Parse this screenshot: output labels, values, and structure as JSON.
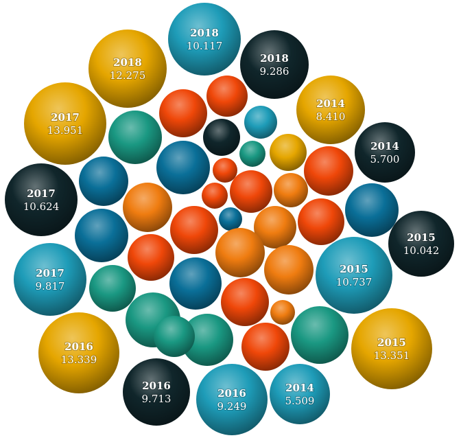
{
  "chart_data": {
    "type": "bubble",
    "colors": {
      "yellow": "#e5a600",
      "teal": "#1e9cb8",
      "dark": "#10262b",
      "green": "#1a9882",
      "blue": "#0a6f98",
      "orange_red": "#ef4709",
      "orange": "#ef7c10"
    },
    "labeled_bubbles": [
      {
        "year": "2018",
        "value": "10.117",
        "color": "teal"
      },
      {
        "year": "2018",
        "value": "9.286",
        "color": "dark"
      },
      {
        "year": "2018",
        "value": "12.275",
        "color": "yellow"
      },
      {
        "year": "2014",
        "value": "8.410",
        "color": "yellow"
      },
      {
        "year": "2017",
        "value": "13.951",
        "color": "yellow"
      },
      {
        "year": "2014",
        "value": "5.700",
        "color": "dark"
      },
      {
        "year": "2017",
        "value": "10.624",
        "color": "dark"
      },
      {
        "year": "2015",
        "value": "10.042",
        "color": "dark"
      },
      {
        "year": "2017",
        "value": "9.817",
        "color": "teal"
      },
      {
        "year": "2015",
        "value": "10.737",
        "color": "teal"
      },
      {
        "year": "2016",
        "value": "13.339",
        "color": "yellow"
      },
      {
        "year": "2015",
        "value": "13.351",
        "color": "yellow"
      },
      {
        "year": "2016",
        "value": "9.713",
        "color": "dark"
      },
      {
        "year": "2016",
        "value": "9.249",
        "color": "teal"
      },
      {
        "year": "2014",
        "value": "5.509",
        "color": "teal"
      }
    ],
    "unlabeled_bubbles": [
      {
        "color": "orange_red"
      },
      {
        "color": "orange_red"
      },
      {
        "color": "teal"
      },
      {
        "color": "green"
      },
      {
        "color": "dark"
      },
      {
        "color": "green"
      },
      {
        "color": "yellow"
      },
      {
        "color": "blue"
      },
      {
        "color": "orange_red"
      },
      {
        "color": "blue"
      },
      {
        "color": "orange_red"
      },
      {
        "color": "orange_red"
      },
      {
        "color": "orange"
      },
      {
        "color": "orange_red"
      },
      {
        "color": "orange"
      },
      {
        "color": "orange_red"
      },
      {
        "color": "blue"
      },
      {
        "color": "blue"
      },
      {
        "color": "orange"
      },
      {
        "color": "orange_red"
      },
      {
        "color": "blue"
      },
      {
        "color": "orange_red"
      },
      {
        "color": "orange"
      },
      {
        "color": "orange"
      },
      {
        "color": "green"
      },
      {
        "color": "blue"
      },
      {
        "color": "orange_red"
      },
      {
        "color": "green"
      },
      {
        "color": "orange"
      },
      {
        "color": "green"
      },
      {
        "color": "green"
      },
      {
        "color": "orange_red"
      },
      {
        "color": "green"
      }
    ]
  }
}
